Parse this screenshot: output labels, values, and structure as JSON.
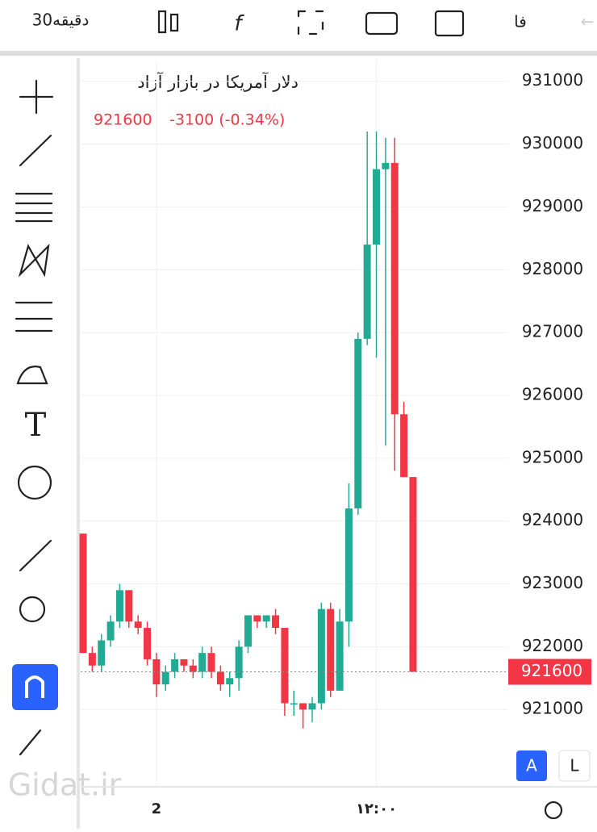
{
  "ui": {
    "interval": "30دقیقه",
    "language": "فا",
    "scale_auto": "A",
    "scale_log": "L",
    "watermark": "Gidat.ir"
  },
  "chart_data": {
    "type": "candlestick",
    "title": "دلار آمریکا در بازار آزاد",
    "last_price": 921600,
    "change": "-3100 (-0.34%)",
    "categories": [
      null,
      null,
      null,
      null,
      null,
      null,
      null,
      null,
      "2",
      null,
      null,
      null,
      null,
      null,
      null,
      null,
      null,
      null,
      null,
      null,
      null,
      null,
      null,
      null,
      null,
      null,
      null,
      null,
      null,
      null,
      null,
      null,
      "۱۲:۰۰",
      null,
      null,
      null,
      null
    ],
    "open": [
      923800,
      921900,
      921700,
      922100,
      922400,
      922900,
      922400,
      922300,
      921800,
      921400,
      921600,
      921800,
      921700,
      921600,
      921900,
      921600,
      921400,
      921500,
      922000,
      922500,
      922400,
      922500,
      922300,
      921100,
      921100,
      921000,
      921100,
      922600,
      921300,
      922400,
      924200,
      926900,
      928400,
      929600,
      929700,
      925700,
      924700
    ],
    "high": [
      923800,
      922000,
      922200,
      922500,
      923000,
      922900,
      922500,
      922400,
      921900,
      921700,
      921900,
      921800,
      921800,
      922000,
      922000,
      921700,
      921600,
      922100,
      922500,
      922500,
      922500,
      922600,
      922300,
      921300,
      921100,
      921200,
      922700,
      922700,
      922600,
      924600,
      927000,
      930200,
      930200,
      930100,
      930100,
      925900,
      924700
    ],
    "low": [
      921900,
      921600,
      921600,
      922000,
      922300,
      922300,
      922200,
      921700,
      921200,
      921300,
      921500,
      921600,
      921500,
      921500,
      921500,
      921300,
      921200,
      921300,
      921900,
      922300,
      922300,
      922200,
      920900,
      920900,
      920700,
      920800,
      921000,
      921200,
      921300,
      922000,
      924100,
      926800,
      926600,
      925200,
      924800,
      924700,
      921600
    ],
    "close": [
      921900,
      921700,
      922100,
      922400,
      922900,
      922400,
      922300,
      921800,
      921400,
      921600,
      921800,
      921700,
      921600,
      921900,
      921600,
      921400,
      921500,
      922000,
      922500,
      922400,
      922500,
      922300,
      921100,
      921100,
      921000,
      921100,
      922600,
      921300,
      922400,
      924200,
      926900,
      928400,
      929600,
      929700,
      925700,
      924700,
      921600
    ],
    "up_color": "#22ab94",
    "down_color": "#f23645",
    "ylim": [
      919770,
      931330
    ],
    "yticks": [
      921000,
      922000,
      923000,
      924000,
      925000,
      926000,
      927000,
      928000,
      929000,
      930000,
      931000
    ],
    "grid": true
  }
}
